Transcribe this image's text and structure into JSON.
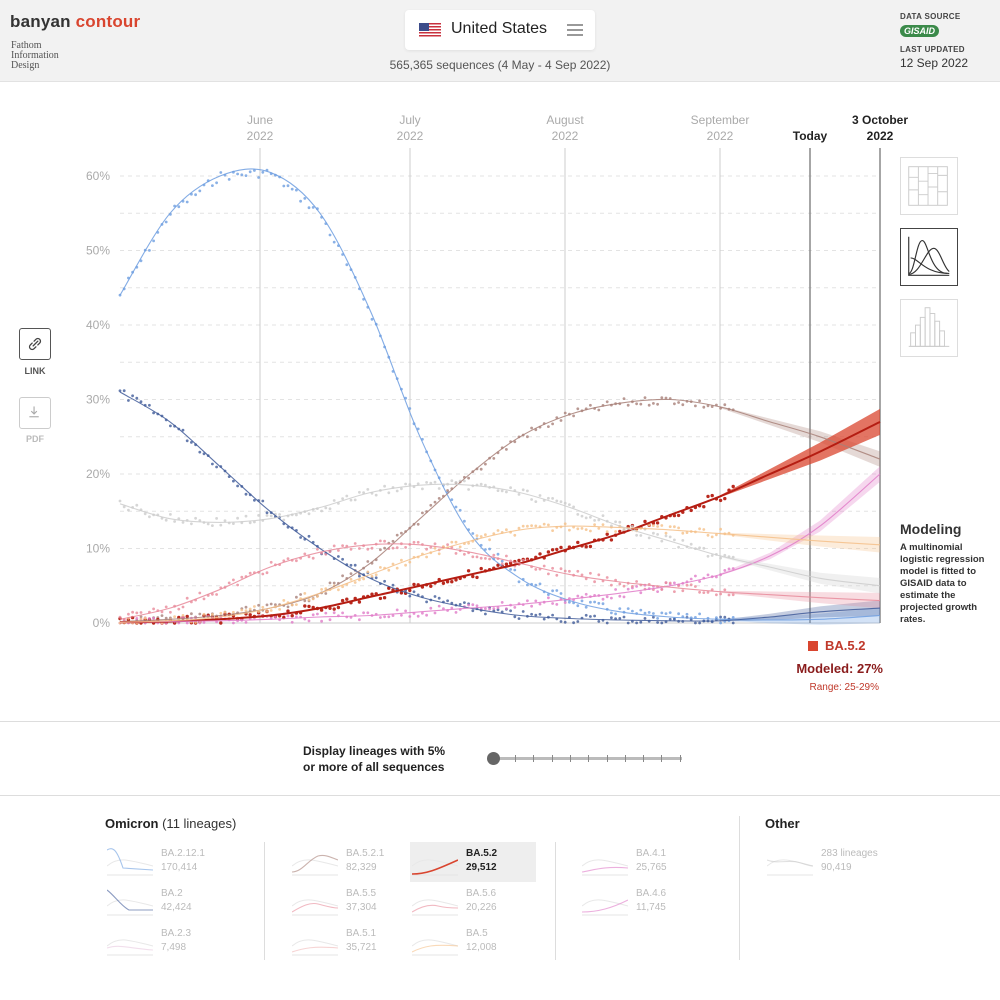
{
  "header": {
    "brand_part1": "banyan",
    "brand_part2": "contour",
    "byline": [
      "Fathom",
      "Information",
      "Design"
    ],
    "country": "United States",
    "sequence_summary": "565,365 sequences (4 May - 4 Sep 2022)",
    "data_source_label": "DATA SOURCE",
    "data_source_logo": "GISAID",
    "last_updated_label": "LAST UPDATED",
    "last_updated_value": "12 Sep 2022"
  },
  "actions": {
    "link_label": "LINK",
    "pdf_label": "PDF"
  },
  "icons": {
    "menu": "hamburger-menu-icon",
    "link": "link-icon",
    "pdf": "download-icon",
    "views": [
      "stacked-area-view-icon",
      "curves-view-icon",
      "histogram-view-icon"
    ]
  },
  "colors": {
    "selected": "#d9452f",
    "ba2_12_1": "#6d9ee0",
    "ba2": "#3f5a99",
    "ba5_2_1": "#a88078",
    "ba4_6": "#e07bc8",
    "ba5_6": "#e88a9a",
    "ba5": "#f5c088",
    "other": "#cccccc"
  },
  "chart_data": {
    "type": "line",
    "x_ticks": [
      {
        "month": "June",
        "year": "2022"
      },
      {
        "month": "July",
        "year": "2022"
      },
      {
        "month": "August",
        "year": "2022"
      },
      {
        "month": "September",
        "year": "2022"
      },
      {
        "month": "Today",
        "year": ""
      },
      {
        "month": "3 October",
        "year": "2022"
      }
    ],
    "y_ticks": [
      "0%",
      "10%",
      "20%",
      "30%",
      "40%",
      "50%",
      "60%"
    ],
    "ylim": [
      0,
      60
    ],
    "grid": true,
    "series": [
      {
        "name": "BA.2.12.1",
        "color": "#6d9ee0",
        "x": [
          "4 May",
          "14 May",
          "24 May",
          "3 Jun",
          "13 Jun",
          "23 Jun",
          "3 Jul",
          "13 Jul",
          "23 Jul",
          "2 Aug",
          "12 Aug",
          "22 Aug",
          "1 Sep",
          "11 Sep",
          "21 Sep",
          "3 Oct"
        ],
        "y": [
          44,
          55,
          60,
          60.5,
          55,
          42,
          25,
          12,
          6,
          3,
          1.5,
          0.8,
          0.5,
          0.4,
          0.5,
          1
        ]
      },
      {
        "name": "BA.2",
        "color": "#3f5a99",
        "x": [
          "4 May",
          "14 May",
          "24 May",
          "3 Jun",
          "13 Jun",
          "23 Jun",
          "3 Jul",
          "13 Jul",
          "23 Jul",
          "2 Aug",
          "12 Aug",
          "22 Aug",
          "1 Sep",
          "11 Sep",
          "21 Sep",
          "3 Oct"
        ],
        "y": [
          31,
          27,
          21,
          15,
          10,
          6,
          3.5,
          2,
          1,
          0.6,
          0.4,
          0.3,
          0.3,
          0.8,
          1.5,
          2
        ]
      },
      {
        "name": "BA.5.2.1",
        "color": "#a88078",
        "x": [
          "4 May",
          "14 May",
          "24 May",
          "3 Jun",
          "13 Jun",
          "23 Jun",
          "3 Jul",
          "13 Jul",
          "23 Jul",
          "2 Aug",
          "12 Aug",
          "22 Aug",
          "1 Sep",
          "11 Sep",
          "21 Sep",
          "3 Oct"
        ],
        "y": [
          0.2,
          0.5,
          1,
          2,
          4,
          8,
          14,
          20,
          25,
          28,
          29.5,
          30,
          29,
          27,
          25,
          22
        ]
      },
      {
        "name": "BA.5.2",
        "color": "#d9452f",
        "x": [
          "4 May",
          "14 May",
          "24 May",
          "3 Jun",
          "13 Jun",
          "23 Jun",
          "3 Jul",
          "13 Jul",
          "23 Jul",
          "2 Aug",
          "12 Aug",
          "22 Aug",
          "1 Sep",
          "11 Sep",
          "21 Sep",
          "3 Oct"
        ],
        "y": [
          0.1,
          0.2,
          0.5,
          1,
          2,
          3.5,
          5,
          6.5,
          8,
          10,
          12,
          14.5,
          17,
          20,
          23,
          27
        ]
      },
      {
        "name": "BA.4.6",
        "color": "#e07bc8",
        "x": [
          "4 May",
          "14 May",
          "24 May",
          "3 Jun",
          "13 Jun",
          "23 Jun",
          "3 Jul",
          "13 Jul",
          "23 Jul",
          "2 Aug",
          "12 Aug",
          "22 Aug",
          "1 Sep",
          "11 Sep",
          "21 Sep",
          "3 Oct"
        ],
        "y": [
          0.1,
          0.2,
          0.3,
          0.5,
          0.8,
          1,
          1.5,
          2,
          2.5,
          3.2,
          4,
          5,
          6.5,
          9,
          13,
          20
        ]
      },
      {
        "name": "BA.5.6",
        "color": "#e88a9a",
        "x": [
          "4 May",
          "14 May",
          "24 May",
          "3 Jun",
          "13 Jun",
          "23 Jun",
          "3 Jul",
          "13 Jul",
          "23 Jul",
          "2 Aug",
          "12 Aug",
          "22 Aug",
          "1 Sep",
          "11 Sep",
          "21 Sep",
          "3 Oct"
        ],
        "y": [
          0.5,
          2,
          4.5,
          7.5,
          9.5,
          10.5,
          10.5,
          9.5,
          8,
          6.5,
          5.5,
          4.8,
          4.2,
          3.8,
          3.4,
          3
        ]
      },
      {
        "name": "BA.5",
        "color": "#f5c088",
        "x": [
          "4 May",
          "14 May",
          "24 May",
          "3 Jun",
          "13 Jun",
          "23 Jun",
          "3 Jul",
          "13 Jul",
          "23 Jul",
          "2 Aug",
          "12 Aug",
          "22 Aug",
          "1 Sep",
          "11 Sep",
          "21 Sep",
          "3 Oct"
        ],
        "y": [
          0.1,
          0.3,
          0.8,
          2,
          4,
          6.5,
          9,
          11,
          12.5,
          13,
          12.8,
          12.5,
          12,
          11.5,
          11,
          10.5
        ]
      },
      {
        "name": "Other",
        "color": "#cccccc",
        "x": [
          "4 May",
          "14 May",
          "24 May",
          "3 Jun",
          "13 Jun",
          "23 Jun",
          "3 Jul",
          "13 Jul",
          "23 Jul",
          "2 Aug",
          "12 Aug",
          "22 Aug",
          "1 Sep",
          "11 Sep",
          "21 Sep",
          "3 Oct"
        ],
        "y": [
          16,
          14,
          13.5,
          14,
          15.5,
          17.5,
          18.5,
          18.5,
          17.5,
          15.5,
          13,
          11,
          9,
          7.5,
          6,
          5
        ]
      }
    ]
  },
  "modeling": {
    "title": "Modeling",
    "description": "A multinomial logistic regression model is fitted to GISAID data to estimate the projected growth rates."
  },
  "selection": {
    "name": "BA.5.2",
    "modeled": "Modeled: 27%",
    "range": "Range: 25-29%"
  },
  "threshold": {
    "line1_prefix": "Display lineages with ",
    "line1_value": "5%",
    "line2": "or more of all sequences",
    "slider_value_percent": 5
  },
  "groups": {
    "omicron_title": "Omicron",
    "omicron_count": "(11 lineages)",
    "other_title": "Other"
  },
  "lineages": [
    {
      "name": "BA.2.12.1",
      "count": "170,414"
    },
    {
      "name": "BA.2",
      "count": "42,424"
    },
    {
      "name": "BA.2.3",
      "count": "7,498"
    },
    {
      "name": "BA.5.2.1",
      "count": "82,329"
    },
    {
      "name": "BA.5.5",
      "count": "37,304"
    },
    {
      "name": "BA.5.1",
      "count": "35,721"
    },
    {
      "name": "BA.5.2",
      "count": "29,512"
    },
    {
      "name": "BA.5.6",
      "count": "20,226"
    },
    {
      "name": "BA.5",
      "count": "12,008"
    },
    {
      "name": "BA.4.1",
      "count": "25,765"
    },
    {
      "name": "BA.4.6",
      "count": "11,745"
    },
    {
      "name": "283 lineages",
      "count": "90,419"
    }
  ]
}
